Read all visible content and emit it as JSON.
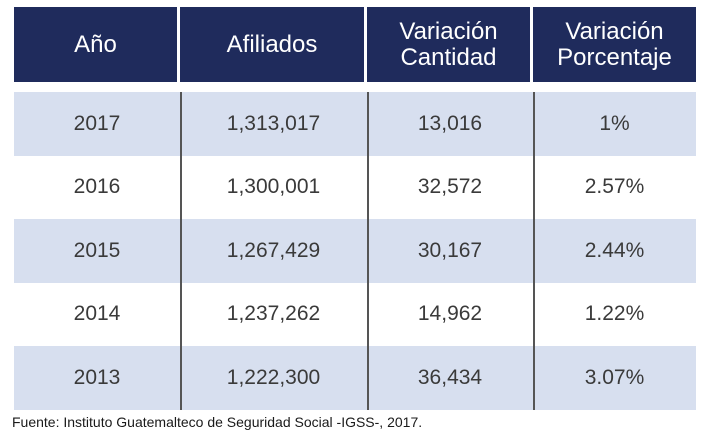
{
  "table": {
    "headers": [
      "Año",
      "Afiliados",
      "Variación\nCantidad",
      "Variación\nPorcentaje"
    ],
    "rows": [
      [
        "2017",
        "1,313,017",
        "13,016",
        "1%"
      ],
      [
        "2016",
        "1,300,001",
        "32,572",
        "2.57%"
      ],
      [
        "2015",
        "1,267,429",
        "30,167",
        "2.44%"
      ],
      [
        "2014",
        "1,237,262",
        "14,962",
        "1.22%"
      ],
      [
        "2013",
        "1,222,300",
        "36,434",
        "3.07%"
      ]
    ]
  },
  "colors": {
    "header_bg": "#1f2b5c",
    "header_text": "#ffffff",
    "stripe": "#d7dfef",
    "divider": "#555555"
  },
  "source": "Fuente: Instituto Guatemalteco de Seguridad Social -IGSS-, 2017."
}
